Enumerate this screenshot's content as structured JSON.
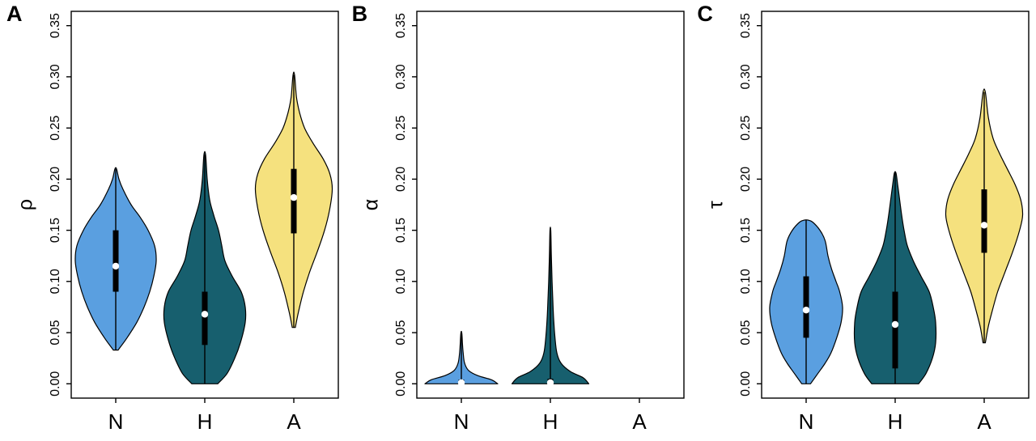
{
  "figure": {
    "background": "#ffffff",
    "axis_color": "#000000",
    "box_color": "#000000",
    "median_dot_color": "#ffffff"
  },
  "chart_data": [
    {
      "type": "violin",
      "panel_label": "A",
      "ylabel": "ρ",
      "categories": [
        "N",
        "H",
        "A"
      ],
      "ylim": [
        0,
        0.35
      ],
      "yticks": [
        0,
        0.05,
        0.1,
        0.15,
        0.2,
        0.25,
        0.3,
        0.35
      ],
      "ytick_labels": [
        "0.00",
        "0.05",
        "0.10",
        "0.15",
        "0.20",
        "0.25",
        "0.30",
        "0.35"
      ],
      "violins": [
        {
          "category": "N",
          "color": "#5A9FE0",
          "min": 0.033,
          "max": 0.21,
          "q1": 0.09,
          "q3": 0.15,
          "median": 0.115,
          "wmax": 1.0,
          "shape": [
            [
              0.033,
              0.06
            ],
            [
              0.045,
              0.28
            ],
            [
              0.06,
              0.52
            ],
            [
              0.075,
              0.7
            ],
            [
              0.09,
              0.84
            ],
            [
              0.105,
              0.94
            ],
            [
              0.12,
              1.0
            ],
            [
              0.135,
              0.96
            ],
            [
              0.15,
              0.8
            ],
            [
              0.163,
              0.6
            ],
            [
              0.175,
              0.38
            ],
            [
              0.19,
              0.18
            ],
            [
              0.2,
              0.08
            ],
            [
              0.21,
              0.02
            ]
          ]
        },
        {
          "category": "H",
          "color": "#175F6E",
          "min": 0.0,
          "max": 0.224,
          "q1": 0.038,
          "q3": 0.09,
          "median": 0.068,
          "wmax": 1.0,
          "shape": [
            [
              0.0,
              0.32
            ],
            [
              0.01,
              0.55
            ],
            [
              0.025,
              0.74
            ],
            [
              0.04,
              0.88
            ],
            [
              0.06,
              1.0
            ],
            [
              0.075,
              1.0
            ],
            [
              0.09,
              0.9
            ],
            [
              0.105,
              0.68
            ],
            [
              0.12,
              0.5
            ],
            [
              0.135,
              0.42
            ],
            [
              0.15,
              0.34
            ],
            [
              0.165,
              0.22
            ],
            [
              0.18,
              0.12
            ],
            [
              0.2,
              0.06
            ],
            [
              0.224,
              0.02
            ]
          ]
        },
        {
          "category": "A",
          "color": "#F5E17E",
          "min": 0.055,
          "max": 0.302,
          "q1": 0.147,
          "q3": 0.21,
          "median": 0.182,
          "wmax": 0.95,
          "shape": [
            [
              0.055,
              0.04
            ],
            [
              0.07,
              0.12
            ],
            [
              0.09,
              0.25
            ],
            [
              0.11,
              0.42
            ],
            [
              0.13,
              0.62
            ],
            [
              0.15,
              0.8
            ],
            [
              0.17,
              0.93
            ],
            [
              0.19,
              1.0
            ],
            [
              0.205,
              0.94
            ],
            [
              0.22,
              0.76
            ],
            [
              0.235,
              0.5
            ],
            [
              0.25,
              0.28
            ],
            [
              0.265,
              0.15
            ],
            [
              0.28,
              0.07
            ],
            [
              0.302,
              0.02
            ]
          ]
        }
      ]
    },
    {
      "type": "violin",
      "panel_label": "B",
      "ylabel": "α",
      "categories": [
        "N",
        "H",
        "A"
      ],
      "ylim": [
        0,
        0.35
      ],
      "yticks": [
        0,
        0.05,
        0.1,
        0.15,
        0.2,
        0.25,
        0.3,
        0.35
      ],
      "ytick_labels": [
        "0.00",
        "0.05",
        "0.10",
        "0.15",
        "0.20",
        "0.25",
        "0.30",
        "0.35"
      ],
      "violins": [
        {
          "category": "N",
          "color": "#5A9FE0",
          "min": 0.0,
          "max": 0.05,
          "q1": 0.0,
          "q3": 0.004,
          "median": 0.001,
          "wmax": 0.9,
          "shape": [
            [
              0.0,
              1.0
            ],
            [
              0.004,
              0.82
            ],
            [
              0.008,
              0.45
            ],
            [
              0.013,
              0.2
            ],
            [
              0.02,
              0.09
            ],
            [
              0.03,
              0.05
            ],
            [
              0.04,
              0.03
            ],
            [
              0.05,
              0.012
            ]
          ]
        },
        {
          "category": "H",
          "color": "#175F6E",
          "min": 0.0,
          "max": 0.15,
          "q1": 0.0,
          "q3": 0.005,
          "median": 0.001,
          "wmax": 0.95,
          "shape": [
            [
              0.0,
              1.0
            ],
            [
              0.006,
              0.85
            ],
            [
              0.012,
              0.52
            ],
            [
              0.02,
              0.28
            ],
            [
              0.03,
              0.17
            ],
            [
              0.045,
              0.12
            ],
            [
              0.06,
              0.09
            ],
            [
              0.08,
              0.065
            ],
            [
              0.1,
              0.045
            ],
            [
              0.125,
              0.025
            ],
            [
              0.15,
              0.01
            ]
          ]
        },
        {
          "category": "A",
          "color": "#F5E17E",
          "absent": true
        }
      ]
    },
    {
      "type": "violin",
      "panel_label": "C",
      "ylabel": "τ",
      "categories": [
        "N",
        "H",
        "A"
      ],
      "ylim": [
        0,
        0.35
      ],
      "yticks": [
        0,
        0.05,
        0.1,
        0.15,
        0.2,
        0.25,
        0.3,
        0.35
      ],
      "ytick_labels": [
        "0.00",
        "0.05",
        "0.10",
        "0.15",
        "0.20",
        "0.25",
        "0.30",
        "0.35"
      ],
      "violins": [
        {
          "category": "N",
          "color": "#5A9FE0",
          "min": 0.0,
          "max": 0.16,
          "q1": 0.045,
          "q3": 0.105,
          "median": 0.072,
          "wmax": 0.9,
          "shape": [
            [
              0.0,
              0.12
            ],
            [
              0.01,
              0.32
            ],
            [
              0.02,
              0.52
            ],
            [
              0.03,
              0.68
            ],
            [
              0.045,
              0.84
            ],
            [
              0.06,
              0.96
            ],
            [
              0.075,
              1.0
            ],
            [
              0.09,
              0.92
            ],
            [
              0.1,
              0.82
            ],
            [
              0.112,
              0.7
            ],
            [
              0.125,
              0.6
            ],
            [
              0.14,
              0.52
            ],
            [
              0.15,
              0.38
            ],
            [
              0.158,
              0.18
            ],
            [
              0.16,
              0.05
            ]
          ]
        },
        {
          "category": "H",
          "color": "#175F6E",
          "min": 0.0,
          "max": 0.206,
          "q1": 0.015,
          "q3": 0.09,
          "median": 0.058,
          "wmax": 1.0,
          "shape": [
            [
              0.0,
              0.58
            ],
            [
              0.01,
              0.76
            ],
            [
              0.025,
              0.92
            ],
            [
              0.04,
              1.0
            ],
            [
              0.06,
              1.0
            ],
            [
              0.075,
              0.94
            ],
            [
              0.09,
              0.84
            ],
            [
              0.105,
              0.64
            ],
            [
              0.12,
              0.45
            ],
            [
              0.135,
              0.3
            ],
            [
              0.15,
              0.22
            ],
            [
              0.165,
              0.16
            ],
            [
              0.18,
              0.11
            ],
            [
              0.195,
              0.06
            ],
            [
              0.206,
              0.02
            ]
          ]
        },
        {
          "category": "A",
          "color": "#F5E17E",
          "min": 0.04,
          "max": 0.285,
          "q1": 0.128,
          "q3": 0.19,
          "median": 0.155,
          "wmax": 0.95,
          "shape": [
            [
              0.04,
              0.03
            ],
            [
              0.055,
              0.1
            ],
            [
              0.07,
              0.2
            ],
            [
              0.09,
              0.35
            ],
            [
              0.11,
              0.55
            ],
            [
              0.13,
              0.75
            ],
            [
              0.15,
              0.92
            ],
            [
              0.165,
              1.0
            ],
            [
              0.18,
              0.95
            ],
            [
              0.195,
              0.8
            ],
            [
              0.21,
              0.6
            ],
            [
              0.225,
              0.4
            ],
            [
              0.24,
              0.23
            ],
            [
              0.26,
              0.11
            ],
            [
              0.285,
              0.03
            ]
          ]
        }
      ]
    }
  ]
}
